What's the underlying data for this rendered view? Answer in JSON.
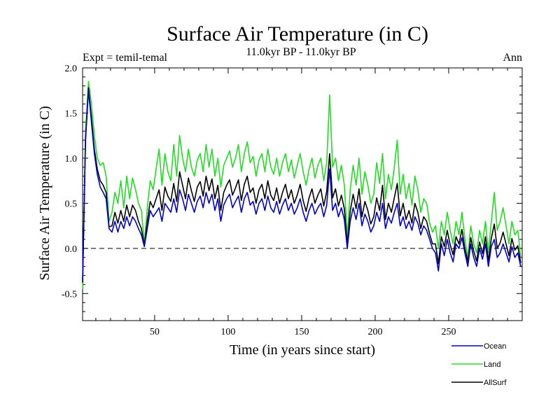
{
  "chart_data": {
    "type": "line",
    "title": "Surface Air Temperature (in C)",
    "subtitle": "11.0kyr BP - 11.0kyr BP",
    "left_label": "Expt = temil-temal",
    "right_label": "Ann",
    "xlabel": "Time (in years since start)",
    "ylabel": "Surface Air Temperature (in C)",
    "xlim": [
      1,
      300
    ],
    "ylim": [
      -0.8,
      2.0
    ],
    "xticks": [
      50,
      100,
      150,
      200,
      250
    ],
    "yticks": [
      -0.5,
      0.0,
      0.5,
      1.0,
      1.5,
      2.0
    ],
    "ytick_labels": [
      "-0.5",
      "0.0",
      "0.5",
      "1.0",
      "1.5",
      "2.0"
    ],
    "zero_line": 0.0,
    "legend_position": "bottom-right",
    "series": [
      {
        "name": "Ocean",
        "color": "#0000cc",
        "x": [
          1,
          3,
          5,
          7,
          9,
          11,
          13,
          15,
          17,
          19,
          21,
          23,
          25,
          27,
          29,
          31,
          33,
          35,
          37,
          39,
          41,
          43,
          45,
          47,
          49,
          51,
          53,
          55,
          57,
          59,
          61,
          63,
          65,
          67,
          69,
          71,
          73,
          75,
          77,
          79,
          81,
          83,
          85,
          87,
          89,
          91,
          93,
          95,
          97,
          99,
          101,
          103,
          105,
          107,
          109,
          111,
          113,
          115,
          117,
          119,
          121,
          123,
          125,
          127,
          129,
          131,
          133,
          135,
          137,
          139,
          141,
          143,
          145,
          147,
          149,
          151,
          153,
          155,
          157,
          159,
          161,
          163,
          165,
          167,
          169,
          171,
          173,
          175,
          177,
          179,
          181,
          183,
          185,
          187,
          189,
          191,
          193,
          195,
          197,
          199,
          201,
          203,
          205,
          207,
          209,
          211,
          213,
          215,
          217,
          219,
          221,
          223,
          225,
          227,
          229,
          231,
          233,
          235,
          237,
          239,
          241,
          243,
          245,
          247,
          249,
          251,
          253,
          255,
          257,
          259,
          261,
          263,
          265,
          267,
          269,
          271,
          273,
          275,
          277,
          279,
          281,
          283,
          285,
          287,
          289,
          291,
          293,
          295,
          297,
          299
        ],
        "values": [
          -0.35,
          1.2,
          1.75,
          1.4,
          1.05,
          0.82,
          0.68,
          0.62,
          0.55,
          0.22,
          0.18,
          0.3,
          0.18,
          0.3,
          0.22,
          0.35,
          0.25,
          0.35,
          0.3,
          0.22,
          0.15,
          0.02,
          0.22,
          0.42,
          0.35,
          0.4,
          0.45,
          0.3,
          0.5,
          0.45,
          0.4,
          0.55,
          0.4,
          0.65,
          0.55,
          0.42,
          0.6,
          0.5,
          0.4,
          0.52,
          0.58,
          0.45,
          0.62,
          0.5,
          0.6,
          0.42,
          0.55,
          0.3,
          0.48,
          0.55,
          0.6,
          0.45,
          0.52,
          0.58,
          0.4,
          0.55,
          0.62,
          0.48,
          0.52,
          0.38,
          0.5,
          0.55,
          0.42,
          0.58,
          0.45,
          0.4,
          0.52,
          0.38,
          0.48,
          0.55,
          0.42,
          0.5,
          0.38,
          0.45,
          0.55,
          0.4,
          0.3,
          0.42,
          0.5,
          0.38,
          0.45,
          0.5,
          0.35,
          0.48,
          0.88,
          0.42,
          0.5,
          0.35,
          0.45,
          0.32,
          0.0,
          0.3,
          0.45,
          0.32,
          0.5,
          0.25,
          0.38,
          0.3,
          0.18,
          0.25,
          0.4,
          0.3,
          0.5,
          0.22,
          0.35,
          0.28,
          0.4,
          0.5,
          0.25,
          0.35,
          0.22,
          0.3,
          0.2,
          0.35,
          0.28,
          0.15,
          0.25,
          0.2,
          0.1,
          0.0,
          -0.05,
          -0.25,
          0.05,
          -0.08,
          0.1,
          -0.05,
          -0.15,
          0.05,
          0.0,
          0.12,
          -0.05,
          -0.2,
          0.05,
          -0.1,
          -0.2,
          0.0,
          -0.12,
          0.05,
          -0.2,
          0.02,
          0.1,
          -0.1,
          -0.05,
          0.05,
          -0.05,
          -0.15,
          0.02,
          -0.1,
          -0.05,
          -0.2
        ]
      },
      {
        "name": "Land",
        "color": "#22dd22",
        "x": [
          1,
          3,
          5,
          7,
          9,
          11,
          13,
          15,
          17,
          19,
          21,
          23,
          25,
          27,
          29,
          31,
          33,
          35,
          37,
          39,
          41,
          43,
          45,
          47,
          49,
          51,
          53,
          55,
          57,
          59,
          61,
          63,
          65,
          67,
          69,
          71,
          73,
          75,
          77,
          79,
          81,
          83,
          85,
          87,
          89,
          91,
          93,
          95,
          97,
          99,
          101,
          103,
          105,
          107,
          109,
          111,
          113,
          115,
          117,
          119,
          121,
          123,
          125,
          127,
          129,
          131,
          133,
          135,
          137,
          139,
          141,
          143,
          145,
          147,
          149,
          151,
          153,
          155,
          157,
          159,
          161,
          163,
          165,
          167,
          169,
          171,
          173,
          175,
          177,
          179,
          181,
          183,
          185,
          187,
          189,
          191,
          193,
          195,
          197,
          199,
          201,
          203,
          205,
          207,
          209,
          211,
          213,
          215,
          217,
          219,
          221,
          223,
          225,
          227,
          229,
          231,
          233,
          235,
          237,
          239,
          241,
          243,
          245,
          247,
          249,
          251,
          253,
          255,
          257,
          259,
          261,
          263,
          265,
          267,
          269,
          271,
          273,
          275,
          277,
          279,
          281,
          283,
          285,
          287,
          289,
          291,
          293,
          295,
          297,
          299
        ],
        "values": [
          -0.45,
          1.3,
          1.85,
          1.6,
          1.25,
          1.0,
          0.92,
          0.95,
          0.8,
          0.3,
          0.4,
          0.62,
          0.5,
          0.75,
          0.45,
          0.8,
          0.55,
          0.78,
          0.65,
          0.5,
          0.42,
          0.05,
          0.45,
          0.75,
          0.65,
          0.88,
          1.1,
          0.7,
          1.05,
          0.85,
          0.75,
          1.15,
          0.8,
          1.25,
          1.0,
          0.85,
          1.1,
          0.9,
          0.8,
          0.98,
          1.05,
          0.85,
          1.15,
          0.9,
          1.1,
          0.8,
          1.0,
          0.68,
          0.92,
          1.0,
          1.08,
          0.9,
          1.0,
          1.15,
          0.85,
          1.05,
          1.18,
          0.95,
          1.02,
          0.8,
          0.98,
          1.05,
          0.85,
          1.1,
          0.9,
          0.82,
          1.0,
          0.8,
          0.95,
          1.05,
          0.85,
          0.98,
          0.78,
          0.92,
          1.05,
          0.85,
          0.7,
          0.88,
          1.0,
          0.78,
          0.92,
          1.0,
          0.75,
          0.95,
          1.7,
          0.9,
          1.0,
          0.75,
          0.92,
          0.7,
          0.12,
          0.65,
          0.92,
          0.7,
          1.0,
          0.6,
          0.85,
          0.7,
          0.5,
          0.6,
          0.95,
          0.72,
          1.05,
          0.55,
          0.82,
          0.65,
          0.9,
          1.2,
          0.6,
          0.82,
          0.55,
          0.72,
          0.48,
          0.8,
          0.65,
          0.4,
          0.55,
          0.5,
          0.28,
          0.18,
          0.25,
          0.0,
          0.3,
          0.15,
          0.4,
          0.2,
          0.05,
          0.3,
          0.15,
          0.4,
          0.1,
          -0.1,
          0.25,
          0.05,
          -0.05,
          0.2,
          0.05,
          0.3,
          -0.05,
          0.3,
          0.62,
          0.2,
          0.3,
          0.45,
          0.25,
          0.05,
          0.3,
          0.15,
          0.2,
          -0.1
        ]
      },
      {
        "name": "AllSurf",
        "color": "#000000",
        "x": [
          1,
          3,
          5,
          7,
          9,
          11,
          13,
          15,
          17,
          19,
          21,
          23,
          25,
          27,
          29,
          31,
          33,
          35,
          37,
          39,
          41,
          43,
          45,
          47,
          49,
          51,
          53,
          55,
          57,
          59,
          61,
          63,
          65,
          67,
          69,
          71,
          73,
          75,
          77,
          79,
          81,
          83,
          85,
          87,
          89,
          91,
          93,
          95,
          97,
          99,
          101,
          103,
          105,
          107,
          109,
          111,
          113,
          115,
          117,
          119,
          121,
          123,
          125,
          127,
          129,
          131,
          133,
          135,
          137,
          139,
          141,
          143,
          145,
          147,
          149,
          151,
          153,
          155,
          157,
          159,
          161,
          163,
          165,
          167,
          169,
          171,
          173,
          175,
          177,
          179,
          181,
          183,
          185,
          187,
          189,
          191,
          193,
          195,
          197,
          199,
          201,
          203,
          205,
          207,
          209,
          211,
          213,
          215,
          217,
          219,
          221,
          223,
          225,
          227,
          229,
          231,
          233,
          235,
          237,
          239,
          241,
          243,
          245,
          247,
          249,
          251,
          253,
          255,
          257,
          259,
          261,
          263,
          265,
          267,
          269,
          271,
          273,
          275,
          277,
          279,
          281,
          283,
          285,
          287,
          289,
          291,
          293,
          295,
          297,
          299
        ],
        "values": [
          -0.38,
          1.22,
          1.78,
          1.45,
          1.1,
          0.88,
          0.75,
          0.7,
          0.62,
          0.24,
          0.25,
          0.4,
          0.28,
          0.42,
          0.3,
          0.48,
          0.35,
          0.48,
          0.42,
          0.3,
          0.22,
          0.03,
          0.3,
          0.52,
          0.45,
          0.55,
          0.65,
          0.42,
          0.68,
          0.58,
          0.52,
          0.72,
          0.52,
          0.85,
          0.7,
          0.55,
          0.78,
          0.64,
          0.52,
          0.68,
          0.74,
          0.58,
          0.8,
          0.64,
          0.77,
          0.55,
          0.7,
          0.42,
          0.62,
          0.7,
          0.76,
          0.59,
          0.67,
          0.76,
          0.53,
          0.71,
          0.8,
          0.62,
          0.67,
          0.5,
          0.65,
          0.71,
          0.55,
          0.75,
          0.59,
          0.53,
          0.67,
          0.5,
          0.62,
          0.71,
          0.55,
          0.65,
          0.5,
          0.59,
          0.71,
          0.53,
          0.41,
          0.56,
          0.66,
          0.5,
          0.59,
          0.66,
          0.47,
          0.63,
          1.05,
          0.56,
          0.66,
          0.47,
          0.59,
          0.44,
          0.04,
          0.41,
          0.6,
          0.44,
          0.66,
          0.35,
          0.52,
          0.42,
          0.27,
          0.35,
          0.56,
          0.42,
          0.7,
          0.32,
          0.5,
          0.4,
          0.56,
          0.72,
          0.36,
          0.5,
          0.32,
          0.42,
          0.28,
          0.5,
          0.4,
          0.22,
          0.35,
          0.3,
          0.16,
          0.05,
          0.05,
          -0.17,
          0.13,
          0.02,
          0.2,
          0.04,
          -0.07,
          0.13,
          0.05,
          0.21,
          0.0,
          -0.15,
          0.12,
          -0.03,
          -0.14,
          0.07,
          -0.06,
          0.13,
          -0.14,
          0.11,
          0.27,
          0.0,
          0.06,
          0.18,
          0.05,
          -0.08,
          0.11,
          -0.02,
          0.03,
          -0.16
        ]
      }
    ]
  }
}
